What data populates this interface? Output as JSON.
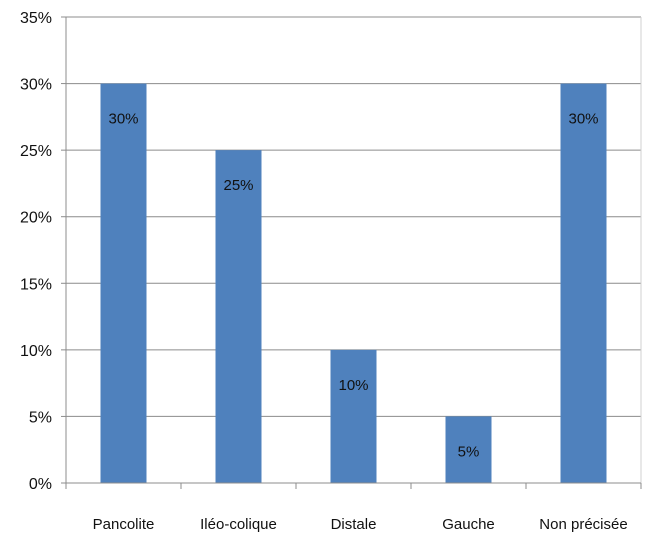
{
  "chart_data": {
    "type": "bar",
    "categories": [
      "Pancolite",
      "Iléo-colique",
      "Distale",
      "Gauche",
      "Non précisée"
    ],
    "values": [
      30,
      25,
      10,
      5,
      30
    ],
    "data_labels": [
      "30%",
      "25%",
      "10%",
      "5%",
      "30%"
    ],
    "y_ticks": [
      "0%",
      "5%",
      "10%",
      "15%",
      "20%",
      "25%",
      "30%",
      "35%"
    ],
    "ylim": [
      0,
      35
    ],
    "tick_step": 5,
    "grid": true,
    "legend": "none",
    "colors": {
      "bar": "#4f81bd",
      "grid": "#8c8c8c",
      "axis": "#8c8c8c",
      "text": "#111111"
    }
  }
}
